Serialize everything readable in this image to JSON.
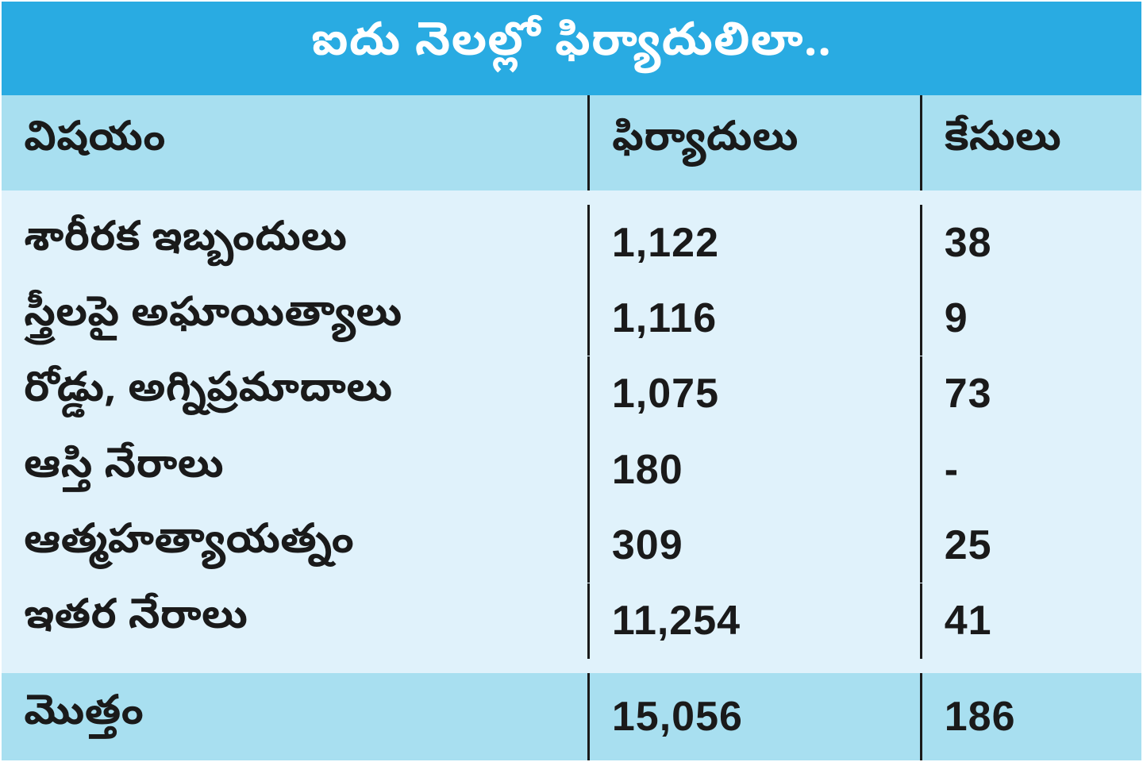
{
  "colors": {
    "title_bg": "#29abe2",
    "title_fg": "#ffffff",
    "header_bg": "#a8dff0",
    "body_bg": "#e0f2fb",
    "total_bg": "#a8dff0",
    "text": "#1a1a1a",
    "divider": "#1a1a1a"
  },
  "title": "ఐదు నెలల్లో ఫిర్యాదులిలా..",
  "columns": [
    "విషయం",
    "ఫిర్యాదులు",
    "కేసులు"
  ],
  "rows": [
    {
      "subject": "శారీరక ఇబ్బందులు",
      "complaints": "1,122",
      "cases": "38"
    },
    {
      "subject": "స్త్రీలపై అఘాయిత్యాలు",
      "complaints": "1,116",
      "cases": "9"
    },
    {
      "subject": "రోడ్డు, అగ్నిప్రమాదాలు",
      "complaints": "1,075",
      "cases": "73"
    },
    {
      "subject": "ఆస్తి నేరాలు",
      "complaints": "180",
      "cases": "-"
    },
    {
      "subject": "ఆత్మహత్యాయత్నం",
      "complaints": "309",
      "cases": "25"
    },
    {
      "subject": "ఇతర నేరాలు",
      "complaints": "11,254",
      "cases": "41"
    }
  ],
  "total": {
    "label": "మొత్తం",
    "complaints": "15,056",
    "cases": "186"
  }
}
